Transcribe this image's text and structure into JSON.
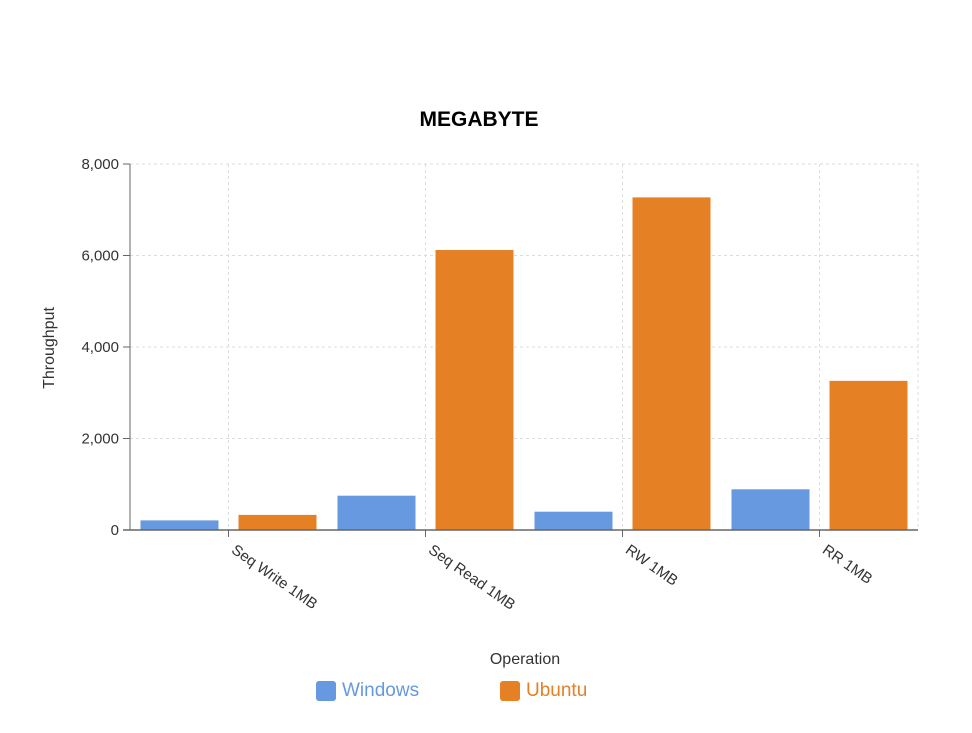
{
  "chart_data": {
    "type": "bar",
    "title": "MEGABYTE",
    "xlabel": "Operation",
    "ylabel": "Throughput",
    "categories": [
      "Seq Write 1MB",
      "Seq Read 1MB",
      "RW 1MB",
      "RR 1MB"
    ],
    "series": [
      {
        "name": "Windows",
        "color": "#6699e0",
        "values": [
          210,
          750,
          400,
          890
        ]
      },
      {
        "name": "Ubuntu",
        "color": "#e58024",
        "values": [
          330,
          6120,
          7270,
          3260
        ]
      }
    ],
    "ylim": [
      0,
      8000
    ],
    "yticks": [
      "0",
      "2,000",
      "4,000",
      "6,000",
      "8,000"
    ],
    "grid": true,
    "legend_position": "bottom"
  }
}
